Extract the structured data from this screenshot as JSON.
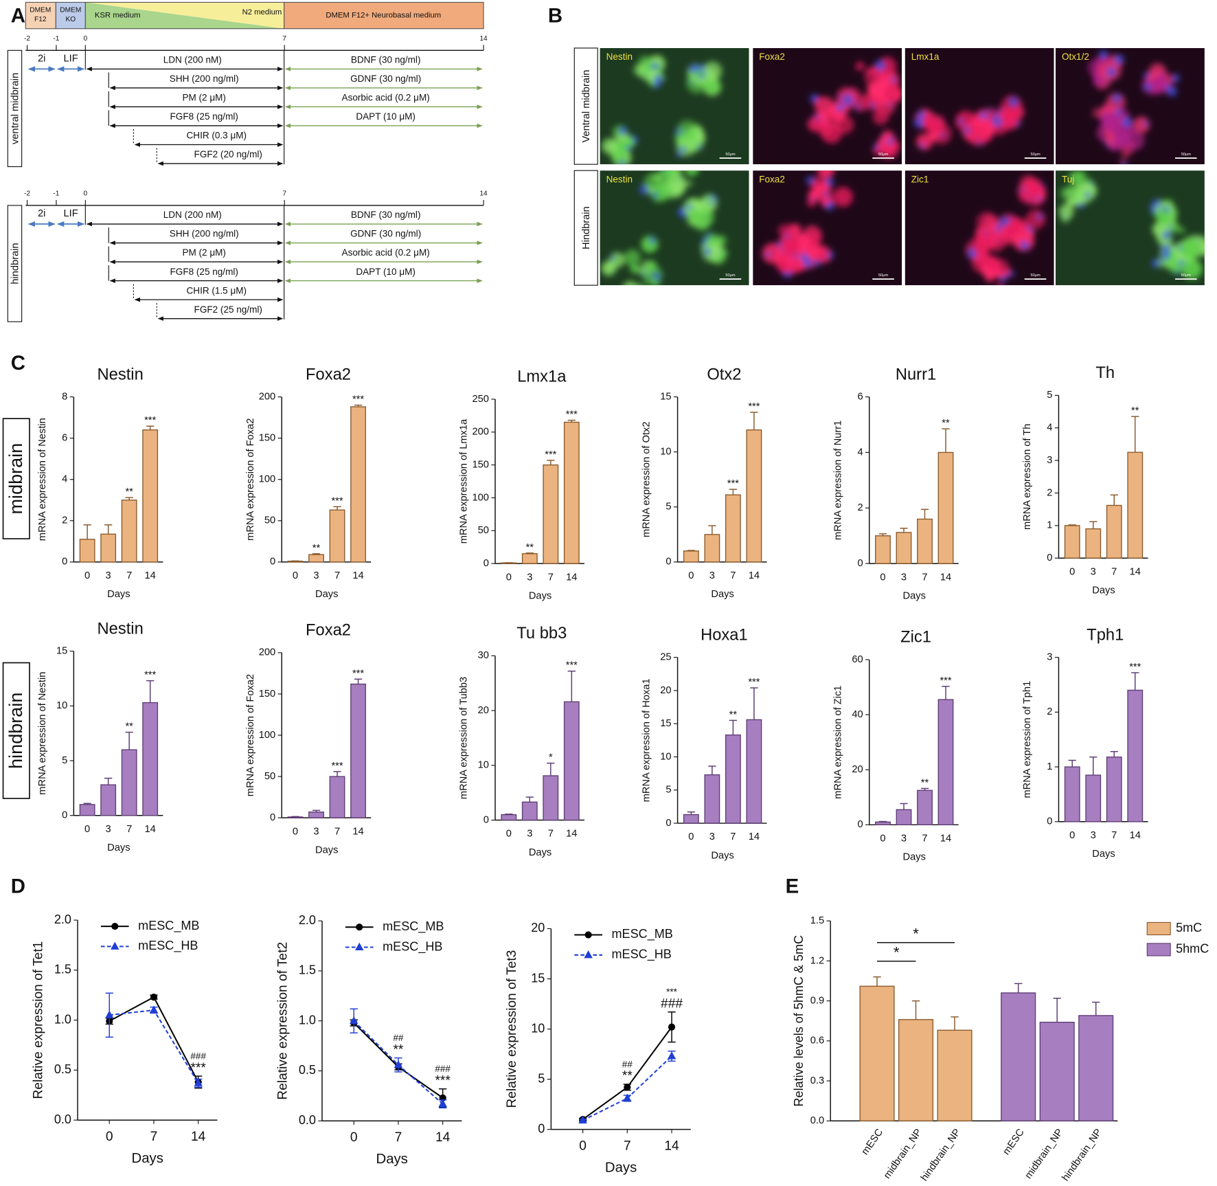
{
  "panel_labels": [
    "A",
    "B",
    "C",
    "D",
    "E"
  ],
  "panel_a": {
    "media": [
      {
        "lines": [
          "DMEM",
          "F12"
        ]
      },
      {
        "lines": [
          "DMEM",
          "KO"
        ]
      },
      {
        "lines": [
          "KSR medium"
        ]
      },
      {
        "lines": [
          "N2 medium"
        ]
      },
      {
        "lines": [
          "DMEM F12+ Neurobasal medium"
        ]
      }
    ],
    "days": [
      -2,
      -1,
      0,
      7,
      14
    ],
    "protocols": [
      {
        "name": "ventral midbrain",
        "pre": [
          "2i",
          "LIF"
        ],
        "phase1": [
          "LDN (200 nM)",
          "SHH (200 ng/ml)",
          "PM (2 μM)",
          "FGF8 (25 ng/ml)",
          "CHIR (0.3 μM)",
          "FGF2 (20 ng/ml)"
        ],
        "phase2": [
          "BDNF (30 ng/ml)",
          "GDNF (30 ng/ml)",
          "Asorbic acid (0.2 μM)",
          "DAPT (10 μM)"
        ]
      },
      {
        "name": "hindbrain",
        "pre": [
          "2i",
          "LIF"
        ],
        "phase1": [
          "LDN (200 nM)",
          "SHH (200 ng/ml)",
          "PM (2 μM)",
          "FGF8 (25 ng/ml)",
          "CHIR (1.5 μM)",
          "FGF2 (25 ng/ml)"
        ],
        "phase2": [
          "BDNF (30 ng/ml)",
          "GDNF (30 ng/ml)",
          "Asorbic acid (0.2 μM)",
          "DAPT (10 μM)"
        ]
      }
    ]
  },
  "panel_b": {
    "rows": [
      {
        "name": "Ventral midbrain",
        "stains": [
          "Nestin",
          "Foxa2",
          "Lmx1a",
          "Otx1/2"
        ]
      },
      {
        "name": "Hindbrain",
        "stains": [
          "Nestin",
          "Foxa2",
          "Zic1",
          "Tuj"
        ]
      }
    ],
    "scale_bar": "50μm"
  },
  "panel_c_rows": [
    "midbrain",
    "hindbrain"
  ],
  "chart_data": [
    {
      "type": "bar",
      "title": "Nestin",
      "ylabel": "mRNA expression of Nestin",
      "xlabel": "Days",
      "categories": [
        0,
        3,
        7,
        14
      ],
      "values": [
        1.1,
        1.35,
        3.0,
        6.4
      ],
      "errors": [
        0.7,
        0.45,
        0.12,
        0.18
      ],
      "significance": [
        null,
        null,
        "**",
        "***"
      ],
      "color": "#eab37f",
      "ylim": [
        0,
        8
      ],
      "yticks": [
        0,
        2,
        4,
        6,
        8
      ]
    },
    {
      "type": "bar",
      "title": "Foxa2",
      "ylabel": "mRNA expression of Foxa2",
      "xlabel": "Days",
      "categories": [
        0,
        3,
        7,
        14
      ],
      "values": [
        1,
        9,
        63,
        188
      ],
      "errors": [
        0.3,
        1,
        4,
        2
      ],
      "significance": [
        null,
        "**",
        "***",
        "***"
      ],
      "color": "#eab37f",
      "ylim": [
        0,
        200
      ],
      "yticks": [
        0,
        50,
        100,
        150,
        200
      ]
    },
    {
      "type": "bar",
      "title": "Lmx1a",
      "ylabel": "mRNA expression of Lmx1a",
      "xlabel": "Days",
      "categories": [
        0,
        3,
        7,
        14
      ],
      "values": [
        1,
        15,
        150,
        215
      ],
      "errors": [
        0.3,
        1,
        7,
        3
      ],
      "significance": [
        null,
        "**",
        "***",
        "***"
      ],
      "color": "#eab37f",
      "ylim": [
        0,
        250
      ],
      "yticks": [
        0,
        50,
        100,
        150,
        200,
        250
      ]
    },
    {
      "type": "bar",
      "title": "Otx2",
      "ylabel": "mRNA expression of Otx2",
      "xlabel": "Days",
      "categories": [
        0,
        3,
        7,
        14
      ],
      "values": [
        1,
        2.5,
        6.1,
        12
      ],
      "errors": [
        0.05,
        0.8,
        0.5,
        1.6
      ],
      "significance": [
        null,
        null,
        "***",
        "***"
      ],
      "color": "#eab37f",
      "ylim": [
        0,
        15
      ],
      "yticks": [
        0,
        5,
        10,
        15
      ]
    },
    {
      "type": "bar",
      "title": "Nurr1",
      "ylabel": "mRNA expression of Nurr1",
      "xlabel": "Days",
      "categories": [
        0,
        3,
        7,
        14
      ],
      "values": [
        1,
        1.12,
        1.6,
        4.0
      ],
      "errors": [
        0.07,
        0.15,
        0.35,
        0.85
      ],
      "significance": [
        null,
        null,
        null,
        "**"
      ],
      "color": "#eab37f",
      "ylim": [
        0,
        6
      ],
      "yticks": [
        0,
        2,
        4,
        6
      ]
    },
    {
      "type": "bar",
      "title": "Th",
      "ylabel": "mRNA expression of Th",
      "xlabel": "Days",
      "categories": [
        0,
        3,
        7,
        14
      ],
      "values": [
        1,
        0.9,
        1.62,
        3.25
      ],
      "errors": [
        0.02,
        0.22,
        0.32,
        1.1
      ],
      "significance": [
        null,
        null,
        null,
        "**"
      ],
      "color": "#eab37f",
      "ylim": [
        0,
        5
      ],
      "yticks": [
        0,
        1,
        2,
        3,
        4,
        5
      ]
    },
    {
      "type": "bar",
      "title": "Nestin",
      "ylabel": "mRNA expression of Nestin",
      "xlabel": "Days",
      "categories": [
        0,
        3,
        7,
        14
      ],
      "values": [
        1,
        2.8,
        6.0,
        10.3
      ],
      "errors": [
        0.1,
        0.6,
        1.6,
        2.0
      ],
      "significance": [
        null,
        null,
        "**",
        "***"
      ],
      "color": "#a77fc0",
      "ylim": [
        0,
        15
      ],
      "yticks": [
        0,
        5,
        10,
        15
      ]
    },
    {
      "type": "bar",
      "title": "Foxa2",
      "ylabel": "mRNA expression of Foxa2",
      "xlabel": "Days",
      "categories": [
        0,
        3,
        7,
        14
      ],
      "values": [
        1,
        7,
        50,
        162
      ],
      "errors": [
        0.5,
        2,
        6,
        6
      ],
      "significance": [
        null,
        null,
        "***",
        "***"
      ],
      "color": "#a77fc0",
      "ylim": [
        0,
        200
      ],
      "yticks": [
        0,
        50,
        100,
        150,
        200
      ]
    },
    {
      "type": "bar",
      "title": "Tu bb3",
      "ylabel": "mRNA expression of Tubb3",
      "xlabel": "Days",
      "categories": [
        0,
        3,
        7,
        14
      ],
      "values": [
        1,
        3.3,
        8.1,
        21.6
      ],
      "errors": [
        0.1,
        0.9,
        2.3,
        5.6
      ],
      "significance": [
        null,
        null,
        "*",
        "***"
      ],
      "color": "#a77fc0",
      "ylim": [
        0,
        30
      ],
      "yticks": [
        0,
        10,
        20,
        30
      ]
    },
    {
      "type": "bar",
      "title": "Hoxa1",
      "ylabel": "mRNA expression of Hoxa1",
      "xlabel": "Days",
      "categories": [
        0,
        3,
        7,
        14
      ],
      "values": [
        1.3,
        7.3,
        13.3,
        15.6
      ],
      "errors": [
        0.4,
        1.3,
        2.2,
        4.8
      ],
      "significance": [
        null,
        null,
        "**",
        "***"
      ],
      "color": "#a77fc0",
      "ylim": [
        0,
        25
      ],
      "yticks": [
        0,
        5,
        10,
        15,
        20,
        25
      ]
    },
    {
      "type": "bar",
      "title": "Zic1",
      "ylabel": "mRNA expression of Zic1",
      "xlabel": "Days",
      "categories": [
        0,
        3,
        7,
        14
      ],
      "values": [
        1,
        5.5,
        12.5,
        45.5
      ],
      "errors": [
        0.2,
        2.2,
        0.7,
        4.8
      ],
      "significance": [
        null,
        null,
        "**",
        "***"
      ],
      "color": "#a77fc0",
      "ylim": [
        0,
        60
      ],
      "yticks": [
        0,
        20,
        40,
        60
      ]
    },
    {
      "type": "bar",
      "title": "Tph1",
      "ylabel": "mRNA expression of Tph1",
      "xlabel": "Days",
      "categories": [
        0,
        3,
        7,
        14
      ],
      "values": [
        1,
        0.85,
        1.18,
        2.4
      ],
      "errors": [
        0.12,
        0.33,
        0.1,
        0.32
      ],
      "significance": [
        null,
        null,
        null,
        "***"
      ],
      "color": "#a77fc0",
      "ylim": [
        0,
        3
      ],
      "yticks": [
        0,
        1,
        2,
        3
      ]
    },
    {
      "type": "line",
      "ylabel": "Relative expression of Tet1",
      "xlabel": "Days",
      "x": [
        0,
        7,
        14
      ],
      "xlim": [
        -5,
        17
      ],
      "xticks": [
        0,
        7,
        14
      ],
      "ylim": [
        0,
        2
      ],
      "yticks": [
        {
          "value": 0,
          "label": "0.0"
        },
        0.5,
        {
          "value": 1,
          "label": "1.0"
        },
        1.5,
        {
          "value": 2,
          "label": "2.0"
        }
      ],
      "legend": "upper center",
      "series": [
        {
          "name": "mESC_MB",
          "color": "#000000",
          "marker": "circle",
          "dash": false,
          "values": [
            0.99,
            1.23,
            0.38
          ],
          "errors": [
            0.03,
            0.02,
            0.06
          ]
        },
        {
          "name": "mESC_HB",
          "color": "#1f3fd6",
          "marker": "triangle",
          "dash": true,
          "values": [
            1.05,
            1.1,
            0.37
          ],
          "errors": [
            0.22,
            0.03,
            0.04
          ]
        }
      ],
      "annotations": [
        {
          "x": 14,
          "labels": [
            "###",
            "***"
          ]
        }
      ]
    },
    {
      "type": "line",
      "ylabel": "Relative expression of Tet2",
      "xlabel": "Days",
      "x": [
        0,
        7,
        14
      ],
      "xlim": [
        -5,
        17
      ],
      "xticks": [
        0,
        7,
        14
      ],
      "ylim": [
        0,
        2
      ],
      "yticks": [
        {
          "value": 0,
          "label": "0.0"
        },
        0.5,
        {
          "value": 1,
          "label": "1.0"
        },
        1.5,
        {
          "value": 2,
          "label": "2.0"
        }
      ],
      "legend": "upper center",
      "series": [
        {
          "name": "mESC_MB",
          "color": "#000000",
          "marker": "circle",
          "dash": false,
          "values": [
            0.98,
            0.54,
            0.23
          ],
          "errors": [
            0.03,
            0.03,
            0.09
          ]
        },
        {
          "name": "mESC_HB",
          "color": "#1f3fd6",
          "marker": "triangle",
          "dash": true,
          "values": [
            1.0,
            0.56,
            0.17
          ],
          "errors": [
            0.12,
            0.07,
            0.04
          ]
        }
      ],
      "annotations": [
        {
          "x": 7,
          "labels": [
            "##",
            "**"
          ]
        },
        {
          "x": 14,
          "labels": [
            "###",
            "***"
          ]
        }
      ]
    },
    {
      "type": "line",
      "ylabel": "Relative expression of Tet3",
      "xlabel": "Days",
      "x": [
        0,
        7,
        14
      ],
      "xlim": [
        -5,
        17
      ],
      "xticks": [
        0,
        7,
        14
      ],
      "ylim": [
        0,
        20
      ],
      "yticks": [
        0,
        5,
        10,
        15,
        20
      ],
      "legend": "upper center",
      "series": [
        {
          "name": "mESC_MB",
          "color": "#000000",
          "marker": "circle",
          "dash": false,
          "values": [
            1,
            4.2,
            10.2
          ],
          "errors": [
            0.1,
            0.3,
            1.5
          ]
        },
        {
          "name": "mESC_HB",
          "color": "#1f3fd6",
          "marker": "triangle",
          "dash": true,
          "values": [
            0.9,
            3.1,
            7.3
          ],
          "errors": [
            0.1,
            0.3,
            0.5
          ]
        }
      ],
      "annotations": [
        {
          "x": 7,
          "labels": [
            "##",
            "**"
          ]
        },
        {
          "x": 14,
          "labels": [
            "***",
            "###"
          ]
        }
      ]
    },
    {
      "type": "bar",
      "ylabel": "Relative levels of 5hmC & 5mC",
      "categories": [
        "mESC",
        "midbrain_NP",
        "hindbrain_NP"
      ],
      "ylim": [
        0,
        1.5
      ],
      "yticks": [
        {
          "value": 0,
          "label": "0.0"
        },
        0.3,
        0.6,
        0.9,
        1.2,
        1.5
      ],
      "legend": "right",
      "series": [
        {
          "name": "5mC",
          "color": "#eab37f",
          "values": [
            1.01,
            0.76,
            0.68
          ],
          "errors": [
            0.07,
            0.14,
            0.1
          ]
        },
        {
          "name": "5hmC",
          "color": "#a77fc0",
          "values": [
            0.96,
            0.74,
            0.79
          ],
          "errors": [
            0.07,
            0.18,
            0.1
          ]
        }
      ],
      "significance": [
        {
          "pair": [
            "mESC",
            "midbrain_NP"
          ],
          "label": "*"
        },
        {
          "pair": [
            "mESC",
            "hindbrain_NP"
          ],
          "label": "*"
        }
      ]
    }
  ]
}
